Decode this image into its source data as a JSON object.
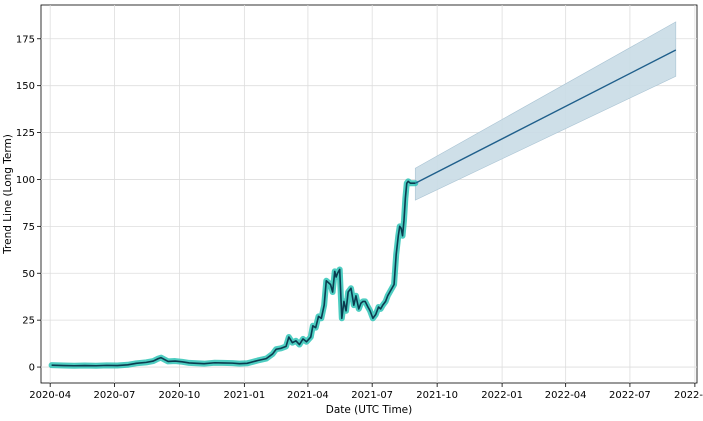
{
  "chart_data": {
    "type": "line",
    "title": "",
    "xlabel": "Date (UTC Time)",
    "ylabel": "Trend Line (Long Term)",
    "x_range": [
      "2020-03-19",
      "2022-10-04"
    ],
    "ylim": [
      -8.5,
      193
    ],
    "x_ticks": [
      "2020-04",
      "2020-07",
      "2020-10",
      "2021-01",
      "2021-04",
      "2021-07",
      "2021-10",
      "2022-01",
      "2022-04",
      "2022-07",
      "2022-10"
    ],
    "y_ticks": [
      0,
      25,
      50,
      75,
      100,
      125,
      150,
      175
    ],
    "grid": true,
    "colors": {
      "historical_line": "#0b3b4f",
      "historical_band": "#2ec4b6",
      "forecast_line": "#1f5f8b",
      "forecast_band": "#c9dbe5",
      "grid": "#dddddd"
    },
    "series": [
      {
        "kind": "historical",
        "x": [
          "2020-04-03",
          "2020-04-20",
          "2020-05-05",
          "2020-05-20",
          "2020-06-05",
          "2020-06-20",
          "2020-07-05",
          "2020-07-20",
          "2020-08-01",
          "2020-08-15",
          "2020-08-25",
          "2020-09-01",
          "2020-09-05",
          "2020-09-15",
          "2020-09-25",
          "2020-10-05",
          "2020-10-15",
          "2020-10-25",
          "2020-11-05",
          "2020-11-20",
          "2020-12-01",
          "2020-12-15",
          "2020-12-25",
          "2021-01-05",
          "2021-01-10",
          "2021-01-20",
          "2021-02-01",
          "2021-02-10",
          "2021-02-15",
          "2021-02-22",
          "2021-03-01",
          "2021-03-05",
          "2021-03-10",
          "2021-03-15",
          "2021-03-20",
          "2021-03-25",
          "2021-03-30",
          "2021-04-05",
          "2021-04-08",
          "2021-04-12",
          "2021-04-16",
          "2021-04-20",
          "2021-04-24",
          "2021-04-27",
          "2021-04-30",
          "2021-05-03",
          "2021-05-06",
          "2021-05-09",
          "2021-05-11",
          "2021-05-13",
          "2021-05-16",
          "2021-05-19",
          "2021-05-22",
          "2021-05-25",
          "2021-05-28",
          "2021-06-01",
          "2021-06-05",
          "2021-06-08",
          "2021-06-12",
          "2021-06-15",
          "2021-06-18",
          "2021-06-21",
          "2021-06-25",
          "2021-06-28",
          "2021-07-02",
          "2021-07-06",
          "2021-07-10",
          "2021-07-13",
          "2021-07-16",
          "2021-07-20",
          "2021-07-23",
          "2021-07-26",
          "2021-07-29",
          "2021-08-01",
          "2021-08-04",
          "2021-08-07",
          "2021-08-09",
          "2021-08-11",
          "2021-08-13",
          "2021-08-15",
          "2021-08-17",
          "2021-08-19",
          "2021-08-21",
          "2021-08-24",
          "2021-08-26",
          "2021-08-28",
          "2021-08-31"
        ],
        "y": [
          1,
          0.8,
          0.7,
          0.8,
          0.7,
          0.9,
          0.8,
          1.2,
          2,
          2.5,
          3.2,
          4.5,
          5,
          3,
          3.2,
          2.8,
          2.2,
          2,
          1.8,
          2.3,
          2.2,
          2.1,
          1.8,
          2,
          2.5,
          3.5,
          4.5,
          7,
          9.5,
          10,
          11,
          16,
          13,
          14,
          12,
          15,
          13.5,
          16,
          22,
          21,
          27,
          26,
          33,
          46,
          45,
          44,
          40,
          51,
          48,
          50,
          52,
          26,
          35,
          30,
          40,
          42,
          33,
          38,
          31,
          34,
          35,
          35,
          32,
          30,
          26,
          28,
          32,
          31,
          33,
          35,
          38,
          40,
          42,
          44,
          60,
          70,
          75,
          74,
          70,
          78,
          90,
          98,
          99,
          98,
          98,
          98,
          98
        ]
      },
      {
        "kind": "forecast",
        "x": [
          "2021-08-31",
          "2022-09-04"
        ],
        "y": [
          98,
          169
        ],
        "upper": [
          106,
          184
        ],
        "lower": [
          89,
          155
        ]
      }
    ]
  }
}
